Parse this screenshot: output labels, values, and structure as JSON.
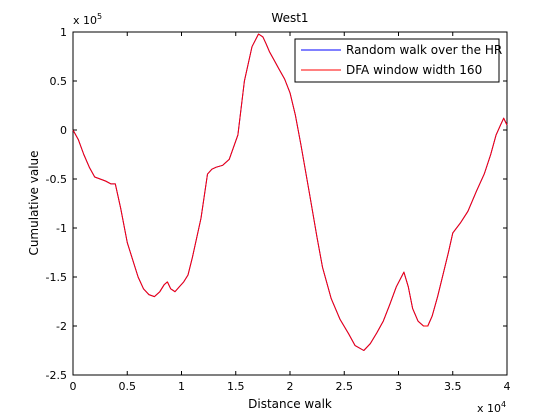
{
  "chart_data": {
    "type": "line",
    "title": "West1",
    "xlabel": "Distance walk",
    "ylabel": "Cumulative value",
    "x_multiplier_base": "x 10",
    "x_multiplier_exp": "4",
    "y_multiplier_base": "x 10",
    "y_multiplier_exp": "5",
    "xlim": [
      0,
      40000
    ],
    "ylim": [
      -250000,
      100000
    ],
    "x_ticks": [
      0,
      5000,
      10000,
      15000,
      20000,
      25000,
      30000,
      35000,
      40000
    ],
    "x_tick_labels": [
      "0",
      "0.5",
      "1",
      "1.5",
      "2",
      "2.5",
      "3",
      "3.5",
      "4"
    ],
    "y_ticks": [
      -250000,
      -200000,
      -150000,
      -100000,
      -50000,
      0,
      50000,
      100000
    ],
    "y_tick_labels": [
      "-2.5",
      "-2",
      "-1.5",
      "-1",
      "-0.5",
      "0",
      "0.5",
      "1"
    ],
    "grid": false,
    "legend_position": "top-right",
    "series": [
      {
        "name": "Random walk over the HR",
        "color": "#0000ff",
        "x": [
          0,
          500,
          1000,
          1500,
          2000,
          3000,
          3500,
          3900,
          4400,
          5000,
          6000,
          6500,
          7000,
          7500,
          8000,
          8400,
          8700,
          9000,
          9400,
          9800,
          10200,
          10600,
          11000,
          11800,
          12400,
          12800,
          13200,
          13800,
          14400,
          15200,
          15800,
          16500,
          17100,
          17500,
          17800,
          18100,
          18500,
          19000,
          19500,
          20000,
          20500,
          21000,
          21800,
          22500,
          23000,
          23800,
          24600,
          25400,
          26000,
          26800,
          27400,
          28000,
          28600,
          29200,
          29800,
          30500,
          30900,
          31300,
          31800,
          32300,
          32700,
          33100,
          33600,
          34200,
          34600,
          35000,
          35700,
          36400,
          37200,
          37900,
          38500,
          39000,
          39400,
          39700,
          40000
        ],
        "y": [
          0,
          -10000,
          -25000,
          -38000,
          -48000,
          -52000,
          -55000,
          -55000,
          -80000,
          -115000,
          -150000,
          -162000,
          -168000,
          -170000,
          -165000,
          -158000,
          -155000,
          -162000,
          -165000,
          -160000,
          -155000,
          -148000,
          -130000,
          -90000,
          -45000,
          -40000,
          -38000,
          -36000,
          -30000,
          -5000,
          50000,
          85000,
          98000,
          95000,
          88000,
          80000,
          72000,
          62000,
          52000,
          38000,
          15000,
          -15000,
          -65000,
          -110000,
          -140000,
          -172000,
          -193000,
          -208000,
          -220000,
          -225000,
          -218000,
          -207000,
          -195000,
          -178000,
          -160000,
          -145000,
          -160000,
          -182000,
          -195000,
          -200000,
          -200000,
          -190000,
          -170000,
          -143000,
          -125000,
          -105000,
          -95000,
          -83000,
          -62000,
          -45000,
          -25000,
          -5000,
          5000,
          12000,
          5000
        ]
      },
      {
        "name": "DFA window width 160",
        "color": "#ff0000",
        "x": [
          0,
          500,
          1000,
          1500,
          2000,
          3000,
          3500,
          3900,
          4400,
          5000,
          6000,
          6500,
          7000,
          7500,
          8000,
          8400,
          8700,
          9000,
          9400,
          9800,
          10200,
          10600,
          11000,
          11800,
          12400,
          12800,
          13200,
          13800,
          14400,
          15200,
          15800,
          16500,
          17100,
          17500,
          17800,
          18100,
          18500,
          19000,
          19500,
          20000,
          20500,
          21000,
          21800,
          22500,
          23000,
          23800,
          24600,
          25400,
          26000,
          26800,
          27400,
          28000,
          28600,
          29200,
          29800,
          30500,
          30900,
          31300,
          31800,
          32300,
          32700,
          33100,
          33600,
          34200,
          34600,
          35000,
          35700,
          36400,
          37200,
          37900,
          38500,
          39000,
          39400,
          39700,
          40000
        ],
        "y": [
          0,
          -10000,
          -25000,
          -38000,
          -48000,
          -52000,
          -55000,
          -55000,
          -80000,
          -115000,
          -150000,
          -162000,
          -168000,
          -170000,
          -165000,
          -158000,
          -155000,
          -162000,
          -165000,
          -160000,
          -155000,
          -148000,
          -130000,
          -90000,
          -45000,
          -40000,
          -38000,
          -36000,
          -30000,
          -5000,
          50000,
          85000,
          98000,
          95000,
          88000,
          80000,
          72000,
          62000,
          52000,
          38000,
          15000,
          -15000,
          -65000,
          -110000,
          -140000,
          -172000,
          -193000,
          -208000,
          -220000,
          -225000,
          -218000,
          -207000,
          -195000,
          -178000,
          -160000,
          -145000,
          -160000,
          -182000,
          -195000,
          -200000,
          -200000,
          -190000,
          -170000,
          -143000,
          -125000,
          -105000,
          -95000,
          -83000,
          -62000,
          -45000,
          -25000,
          -5000,
          5000,
          12000,
          5000
        ]
      }
    ]
  }
}
